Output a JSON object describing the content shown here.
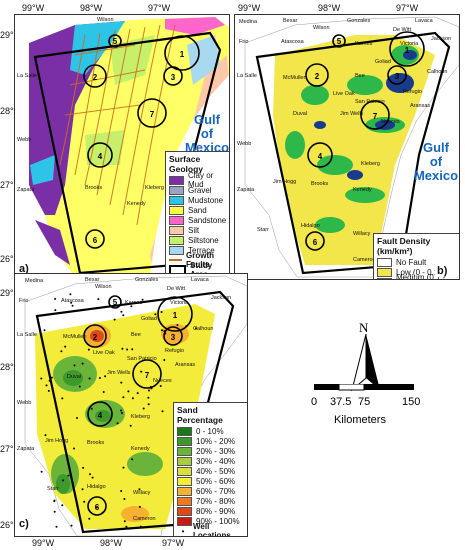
{
  "axes": {
    "top": [
      "99°W",
      "98°W",
      "97°W"
    ],
    "side": [
      "29°N",
      "28°N",
      "27°N",
      "26°N"
    ]
  },
  "panels": [
    {
      "label": "a)"
    },
    {
      "label": "b)"
    },
    {
      "label": "c)"
    }
  ],
  "gulf": {
    "line1": "Gulf",
    "line2": "of",
    "line3": "Mexico"
  },
  "circles": [
    "1",
    "2",
    "3",
    "4",
    "5",
    "6",
    "7"
  ],
  "cities_a": [
    "Wilson",
    "La Salle",
    "Webb",
    "Zapata"
  ],
  "cities": [
    "Medina",
    "Bexar",
    "Wilson",
    "Gonzales",
    "Lavaca",
    "De Witt",
    "Jackson",
    "Frio",
    "Atascosa",
    "Karnes",
    "Victoria",
    "Goliad",
    "Calhoun",
    "La Salle",
    "McMullen",
    "Bee",
    "Refugio",
    "Live Oak",
    "San Patricio",
    "Aransas",
    "Webb",
    "Duval",
    "Jim Wells",
    "Nueces",
    "Kleberg",
    "Zapata",
    "Jim Hogg",
    "Brooks",
    "Kenedy",
    "Starr",
    "Hidalgo",
    "Willacy",
    "Cameron"
  ],
  "legend_geology": {
    "title": "Surface Geology",
    "items": [
      {
        "label": "Clay or Mud",
        "color": "#7b2fa6"
      },
      {
        "label": "Gravel",
        "color": "#9aa2c8"
      },
      {
        "label": "Mudstone",
        "color": "#2ec4e8"
      },
      {
        "label": "Sand",
        "color": "#ffff44"
      },
      {
        "label": "Sandstone",
        "color": "#ff66cc"
      },
      {
        "label": "Silt",
        "color": "#ffc8a8"
      },
      {
        "label": "Siltstone",
        "color": "#c6ef6a"
      },
      {
        "label": "Terrace",
        "color": "#a8d8f0"
      }
    ],
    "faults": "Growth Faults",
    "study": "Study Area"
  },
  "legend_fault": {
    "title": "Fault Density",
    "unit": "(km/km²)",
    "items": [
      {
        "label": "No Fault",
        "color": "#ffffff"
      },
      {
        "label": "Low (0 - 0.1)",
        "color": "#f3e64a"
      },
      {
        "label": "Medium (0.1 - 0.15)",
        "color": "#2eb84a"
      },
      {
        "label": "High (> 0.15)",
        "color": "#1a3a8c"
      }
    ]
  },
  "legend_sand": {
    "title": "Sand Percentage",
    "items": [
      {
        "label": "0 - 10%",
        "color": "#1a7a1a"
      },
      {
        "label": "10% - 20%",
        "color": "#3d9a2a"
      },
      {
        "label": "20% - 30%",
        "color": "#6ab43a"
      },
      {
        "label": "30% - 40%",
        "color": "#a8cc3a"
      },
      {
        "label": "40% - 50%",
        "color": "#d8e040"
      },
      {
        "label": "50% - 60%",
        "color": "#f4ec3a"
      },
      {
        "label": "60% - 70%",
        "color": "#f8b030"
      },
      {
        "label": "70% - 80%",
        "color": "#f07820"
      },
      {
        "label": "80% - 90%",
        "color": "#e04818"
      },
      {
        "label": "90% - 100%",
        "color": "#c81a14"
      }
    ],
    "wells": "Well Locations"
  },
  "compass": {
    "north": "N"
  },
  "scalebar": {
    "ticks": [
      "0",
      "37.5",
      "75",
      "150"
    ],
    "unit": "Kilometers"
  }
}
